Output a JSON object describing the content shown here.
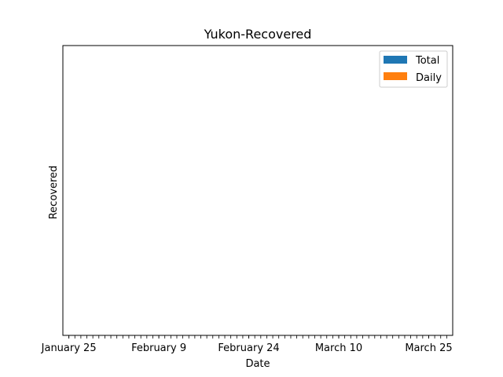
{
  "chart_data": {
    "type": "bar",
    "title": "Yukon-Recovered",
    "xlabel": "Date",
    "ylabel": "Recovered",
    "x_start": "2020-01-24",
    "x_end": "2020-03-29",
    "labeled_ticks": [
      {
        "date": "2020-01-25",
        "label": "January 25"
      },
      {
        "date": "2020-02-09",
        "label": "February 9"
      },
      {
        "date": "2020-02-24",
        "label": "February 24"
      },
      {
        "date": "2020-03-10",
        "label": "March 10"
      },
      {
        "date": "2020-03-25",
        "label": "March 25"
      }
    ],
    "series": [
      {
        "name": "Total",
        "color": "#1f77b4",
        "values": []
      },
      {
        "name": "Daily",
        "color": "#ff7f0e",
        "values": []
      }
    ],
    "legend_position": "top-right",
    "grid": false
  }
}
